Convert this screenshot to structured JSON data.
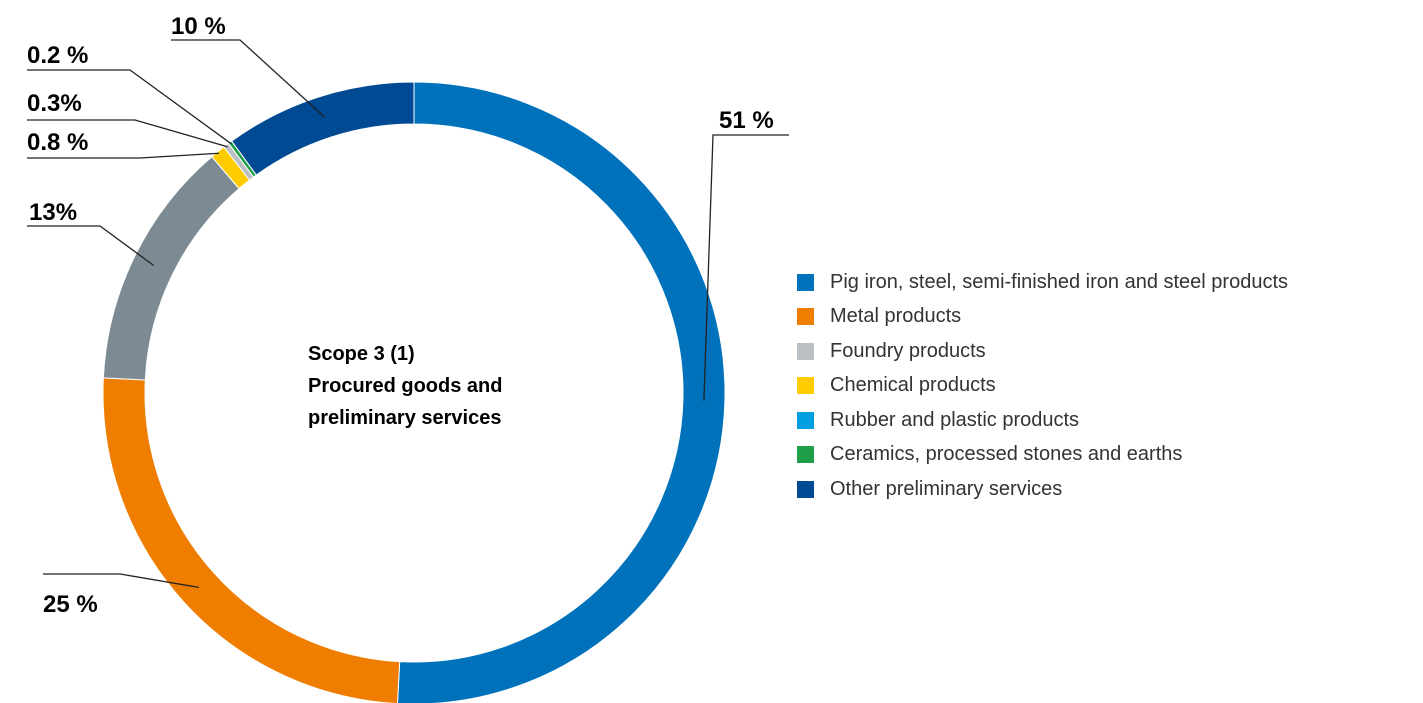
{
  "chart_data": {
    "type": "pie",
    "title_lines": [
      "Scope 3 (1)",
      "Procured goods and",
      "preliminary services"
    ],
    "slices": [
      {
        "name": "Pig iron, steel, semi-finished iron and steel products",
        "value": 51,
        "label": "51 %",
        "color": "#0072BC"
      },
      {
        "name": "Metal products",
        "value": 25,
        "label": "25 %",
        "color": "#EE7D00"
      },
      {
        "name": "Foundry products",
        "value": 13,
        "label": "13%",
        "color": "#7B8A93"
      },
      {
        "name": "Chemical products",
        "value": 0.8,
        "label": "0.8 %",
        "color": "#FFCC00"
      },
      {
        "name": "Rubber and plastic products",
        "value": 0.3,
        "label": "0.3%",
        "color": "#B9BFC3"
      },
      {
        "name": "Ceramics, processed stones and earths",
        "value": 0.2,
        "label": "0.2 %",
        "color": "#1FA048"
      },
      {
        "name": "Other preliminary services",
        "value": 10,
        "label": "10 %",
        "color": "#004A93"
      }
    ],
    "legend": [
      {
        "label": "Pig iron, steel, semi-finished iron and steel products",
        "color": "#0072BC"
      },
      {
        "label": "Metal products",
        "color": "#EE7D00"
      },
      {
        "label": "Foundry products",
        "color": "#B9BFC3"
      },
      {
        "label": "Chemical products",
        "color": "#FFCC00"
      },
      {
        "label": "Rubber and plastic products",
        "color": "#00A0E0"
      },
      {
        "label": "Ceramics, processed stones and earths",
        "color": "#1FA048"
      },
      {
        "label": "Other preliminary services",
        "color": "#004A93"
      }
    ]
  }
}
